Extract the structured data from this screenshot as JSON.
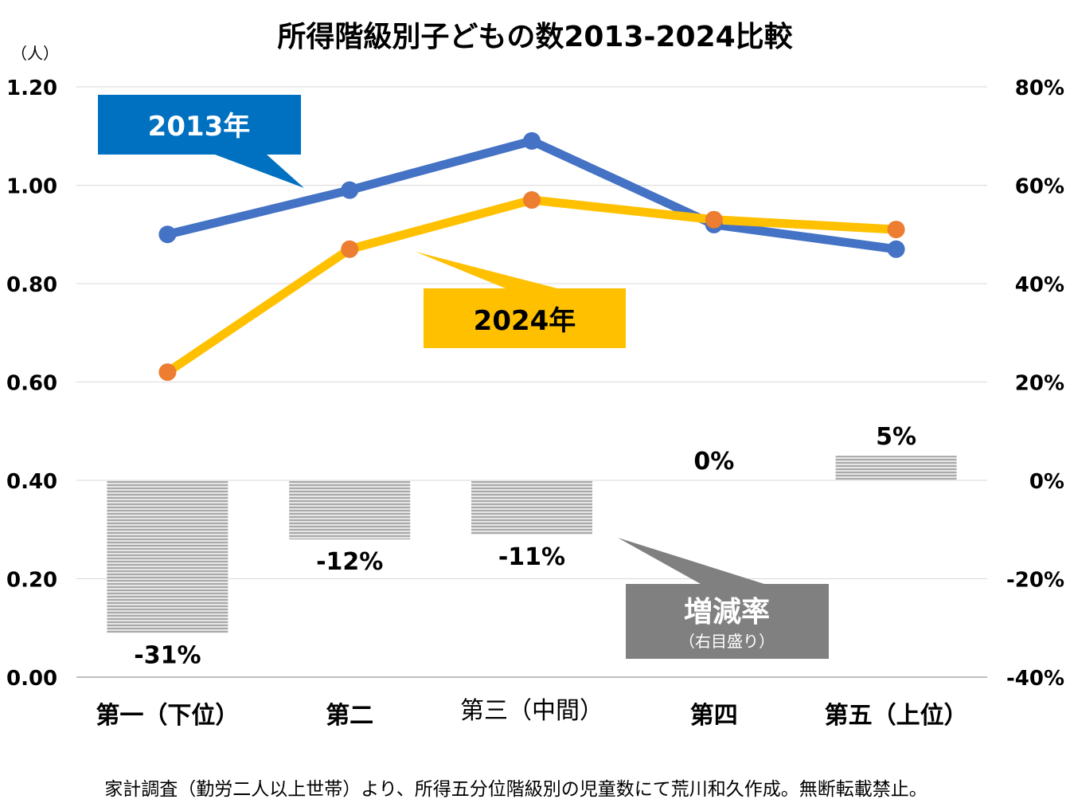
{
  "chart_data": {
    "type": "line+bar",
    "title": "所得階級別子どもの数2013-2024比較",
    "left_axis_unit": "（人）",
    "categories": [
      "第一（下位）",
      "第二",
      "第三（中間）",
      "第四",
      "第五（上位）"
    ],
    "left_ylim": [
      0,
      1.2
    ],
    "left_ticks": [
      "0.00",
      "0.20",
      "0.40",
      "0.60",
      "0.80",
      "1.00",
      "1.20"
    ],
    "right_ylim": [
      -40,
      80
    ],
    "right_ticks": [
      "-40%",
      "-20%",
      "0%",
      "20%",
      "40%",
      "60%",
      "80%"
    ],
    "grid": true,
    "series": [
      {
        "name": "2013年",
        "type": "line",
        "axis": "left",
        "color": "#4472C4",
        "marker_color": "#4472C4",
        "values": [
          0.9,
          0.99,
          1.09,
          0.92,
          0.87
        ]
      },
      {
        "name": "2024年",
        "type": "line",
        "axis": "left",
        "color": "#FFC000",
        "marker_color": "#ED7D31",
        "values": [
          0.62,
          0.87,
          0.97,
          0.93,
          0.91
        ]
      },
      {
        "name": "増減率",
        "type": "bar",
        "axis": "right",
        "color": "#A6A6A6",
        "values": [
          -31,
          -12,
          -11,
          0,
          5
        ],
        "labels": [
          "-31%",
          "-12%",
          "-11%",
          "0%",
          "5%"
        ]
      }
    ],
    "callouts": {
      "s2013": {
        "text": "2013年",
        "color": "#0070C0"
      },
      "s2024": {
        "text": "2024年",
        "color": "#FFC000"
      },
      "rate": {
        "text": "増減率",
        "sub": "（右目盛り）",
        "color": "#808080"
      }
    },
    "footnote": "家計調査（勤労二人以上世帯）より、所得五分位階級別の児童数にて荒川和久作成。無断転載禁止。"
  }
}
